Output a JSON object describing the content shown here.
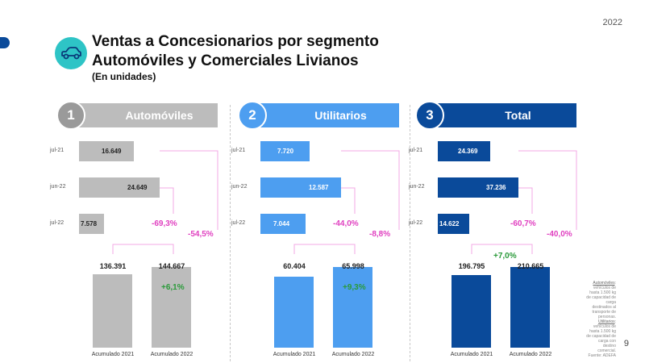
{
  "year": "2022",
  "title_line1": "Ventas a Concesionarios por segmento",
  "title_line2": "Automóviles y Comerciales Livianos",
  "subtitle": "(En unidades)",
  "colors": {
    "auto": "#bcbcbc",
    "util": "#4d9ef0",
    "total": "#0a4a9a",
    "pink": "#e040c0",
    "green": "#2a9a3a"
  },
  "chart_data": [
    {
      "type": "bar",
      "number": "1",
      "title": "Automóviles",
      "monthly": {
        "categories": [
          "jul-21",
          "jun-22",
          "jul-22"
        ],
        "values": [
          16649,
          24649,
          7578
        ],
        "labels": [
          "16.649",
          "24.649",
          "7.578"
        ],
        "change_vs_prev_month": "-69,3%",
        "change_vs_prev_year": "-54,5%"
      },
      "accumulated": {
        "categories": [
          "Acumulado 2021",
          "Acumulado 2022"
        ],
        "values": [
          136391,
          144667
        ],
        "labels": [
          "136.391",
          "144.667"
        ],
        "change": "+6,1%"
      }
    },
    {
      "type": "bar",
      "number": "2",
      "title": "Utilitarios",
      "monthly": {
        "categories": [
          "jul-21",
          "jun-22",
          "jul-22"
        ],
        "values": [
          7720,
          12587,
          7044
        ],
        "labels": [
          "7.720",
          "12.587",
          "7.044"
        ],
        "change_vs_prev_month": "-44,0%",
        "change_vs_prev_year": "-8,8%"
      },
      "accumulated": {
        "categories": [
          "Acumulado 2021",
          "Acumulado 2022"
        ],
        "values": [
          60404,
          65998
        ],
        "labels": [
          "60.404",
          "65.998"
        ],
        "change": "+9,3%"
      }
    },
    {
      "type": "bar",
      "number": "3",
      "title": "Total",
      "monthly": {
        "categories": [
          "jul-21",
          "jun-22",
          "jul-22"
        ],
        "values": [
          24369,
          37236,
          14622
        ],
        "labels": [
          "24.369",
          "37.236",
          "14.622"
        ],
        "change_vs_prev_month": "-60,7%",
        "change_vs_prev_year": "-40,0%"
      },
      "accumulated": {
        "categories": [
          "Acumulado 2021",
          "Acumulado 2022"
        ],
        "values": [
          196795,
          210665
        ],
        "labels": [
          "196.795",
          "210.665"
        ],
        "change": "+7,0%"
      }
    }
  ],
  "footnote": {
    "auto_term": "Automóviles",
    "auto_text": ": vehículos de hasta 1.500 kg de capacidad de carga destinados al transporte de personas.",
    "util_term": "Utilitarios",
    "util_text": ": vehículos de hasta 1.500 kg de capacidad de carga con destino comercial.",
    "source": "Fuente: ADEFA"
  },
  "page_number": "9"
}
